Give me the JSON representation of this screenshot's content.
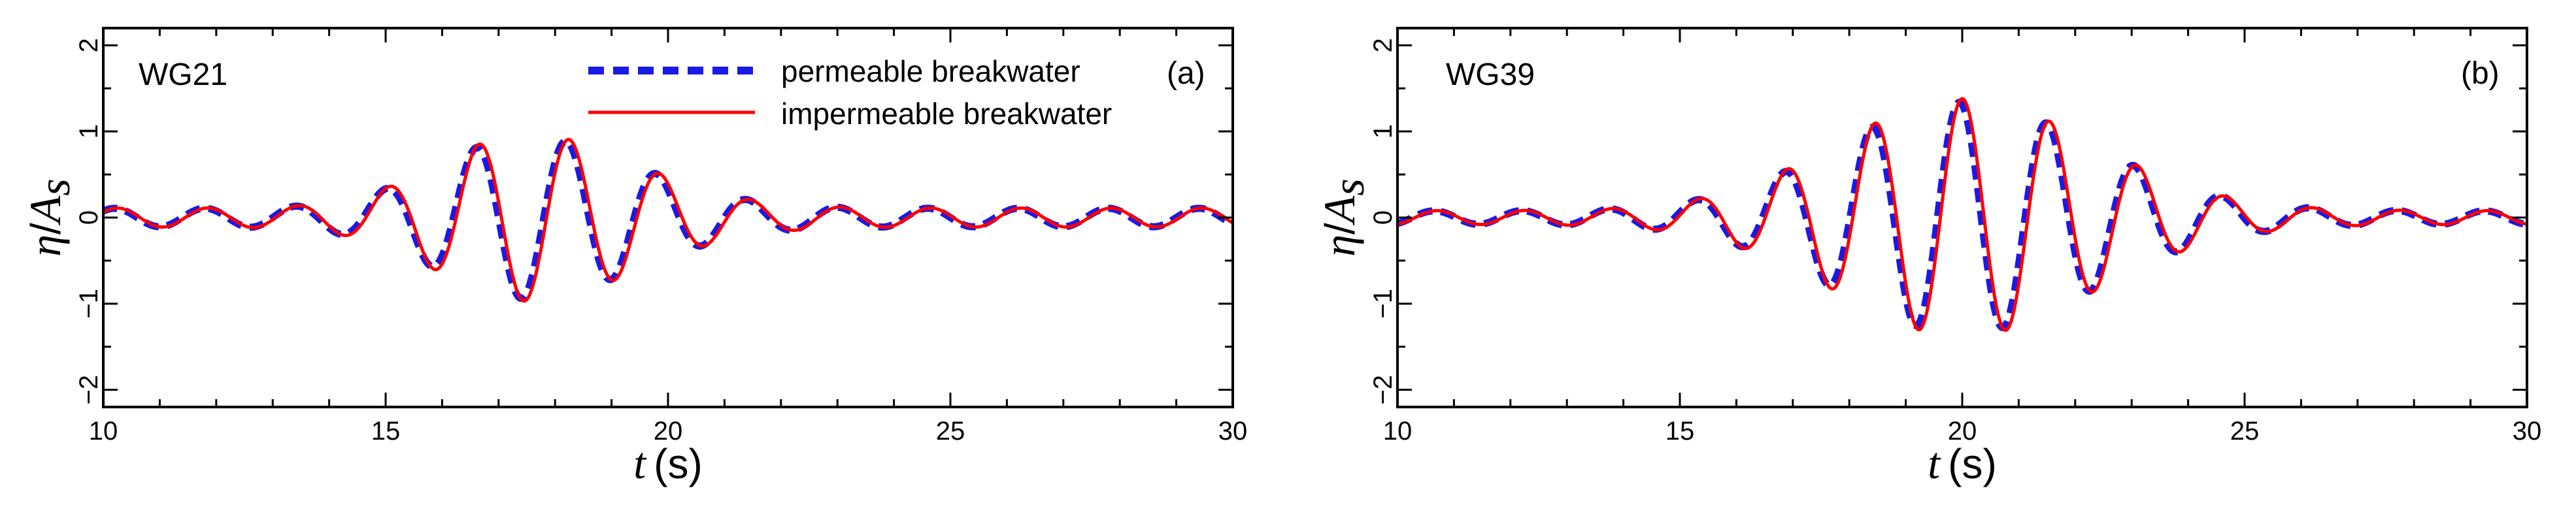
{
  "figure": {
    "background": "#ffffff"
  },
  "legend": {
    "permeable_label": "permeable breakwater",
    "impermeable_label": "impermeable breakwater"
  },
  "axis_text": {
    "x_symbol": "t",
    "x_unit": "(s)",
    "y_symbol": "η",
    "y_div": "/",
    "y_var": "A",
    "y_sub": "s"
  },
  "chart_data": [
    {
      "type": "line",
      "panel_id": "(a)",
      "probe": "WG21",
      "xlabel": "t (s)",
      "ylabel": "η/A_s",
      "xlim": [
        10,
        30
      ],
      "ylim": [
        -2.2,
        2.2
      ],
      "xticks": [
        10,
        15,
        20,
        25,
        30
      ],
      "yticks": [
        -2,
        -1,
        0,
        1,
        2
      ],
      "grid": false,
      "legend_position": "top-center",
      "wave": {
        "period": 1.6,
        "peak_time": 17.5,
        "ramp_sigma": 1.55,
        "decay_sigma": 1.9,
        "max_amp": 0.97,
        "tail_amp": 0.11,
        "peak_phase_time": 18.25
      },
      "series": [
        {
          "name": "permeable breakwater",
          "color": "#1a1ae6",
          "style": "dashed",
          "amp_scale": 0.97,
          "phase_shift": -0.05
        },
        {
          "name": "impermeable breakwater",
          "color": "#ff0000",
          "style": "solid",
          "amp_scale": 1.0,
          "phase_shift": 0.0
        }
      ]
    },
    {
      "type": "line",
      "panel_id": "(b)",
      "probe": "WG39",
      "xlabel": "t (s)",
      "ylabel": "η/A_s",
      "xlim": [
        10,
        30
      ],
      "ylim": [
        -2.2,
        2.2
      ],
      "xticks": [
        10,
        15,
        20,
        25,
        30
      ],
      "yticks": [
        -2,
        -1,
        0,
        1,
        2
      ],
      "grid": false,
      "legend_position": "none",
      "wave": {
        "period": 1.55,
        "peak_time": 20.0,
        "ramp_sigma": 2.2,
        "decay_sigma": 2.3,
        "max_amp": 1.38,
        "tail_amp": 0.08,
        "peak_phase_time": 20.0
      },
      "series": [
        {
          "name": "permeable breakwater",
          "color": "#1a1ae6",
          "style": "dashed",
          "amp_scale": 0.97,
          "phase_shift": -0.05
        },
        {
          "name": "impermeable breakwater",
          "color": "#ff0000",
          "style": "solid",
          "amp_scale": 1.0,
          "phase_shift": 0.0
        }
      ]
    }
  ]
}
